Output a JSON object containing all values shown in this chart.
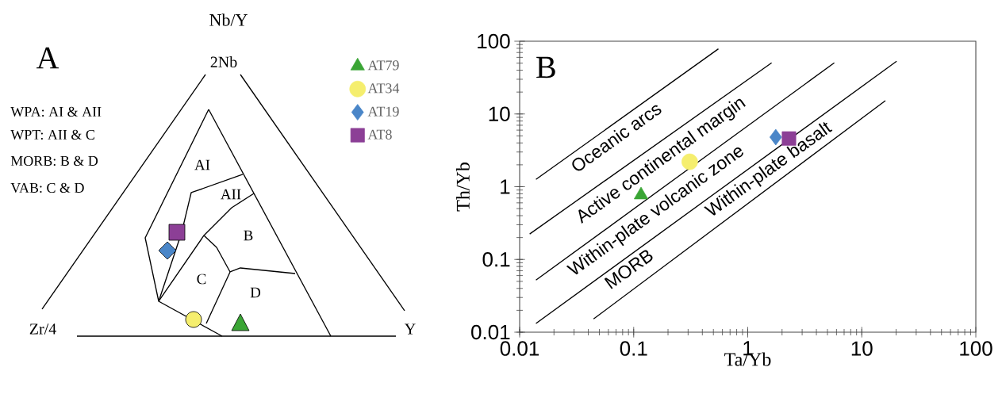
{
  "chart_data": [
    {
      "type": "other",
      "title": "A",
      "annotations": [
        "Nb/Y",
        "2Nb",
        "Zr/4",
        "Y",
        "WPA: AI & AII",
        "WPT: AII & C",
        "MORB: B & D",
        "VAB: C & D",
        "AI",
        "AII",
        "B",
        "C",
        "D"
      ]
    },
    {
      "type": "scatter",
      "title": "B",
      "xlabel": "Ta/Yb",
      "ylabel": "Th/Yb",
      "log": "xy",
      "xlim": [
        0.01,
        100
      ],
      "ylim": [
        0.01,
        100
      ],
      "xticks": [
        0.01,
        0.1,
        1,
        10,
        100
      ],
      "yticks": [
        0.01,
        0.1,
        1,
        10,
        100
      ],
      "legend": "left",
      "annotations": [
        "Oceanic arcs",
        "Active continental margin",
        "Within-plate volcanic zone",
        "MORB",
        "Within-plate basalt"
      ],
      "series": [
        {
          "type": "line",
          "color": "#000000",
          "marker": "none",
          "x": [
            0.0139,
            0.553
          ],
          "values": [
            1.26,
            78.5
          ]
        },
        {
          "type": "line",
          "color": "#000000",
          "marker": "none",
          "x": [
            0.01225,
            1.62
          ],
          "values": [
            0.224,
            50.5
          ]
        },
        {
          "type": "line",
          "color": "#000000",
          "marker": "none",
          "x": [
            0.0139,
            5.74
          ],
          "values": [
            0.052,
            50.5
          ]
        },
        {
          "type": "line",
          "color": "#000000",
          "marker": "none",
          "x": [
            0.0139,
            20.2
          ],
          "values": [
            0.0132,
            53
          ]
        },
        {
          "type": "line",
          "color": "#000000",
          "marker": "none",
          "x": [
            0.0445,
            16.1
          ],
          "values": [
            0.0152,
            15.2
          ]
        },
        {
          "name": "AT79",
          "color": "#3aa535",
          "marker": "triangle",
          "x": [
            0.116
          ],
          "values": [
            0.77
          ]
        },
        {
          "name": "AT34",
          "color": "#f5ee6e",
          "marker": "circle",
          "x": [
            0.31
          ],
          "values": [
            2.2
          ]
        },
        {
          "name": "AT19",
          "color": "#4a86c8",
          "marker": "diamond",
          "x": [
            1.76
          ],
          "values": [
            4.8
          ]
        },
        {
          "name": "AT8",
          "color": "#8c3f96",
          "marker": "square",
          "x": [
            2.3
          ],
          "values": [
            4.6
          ]
        }
      ]
    }
  ]
}
